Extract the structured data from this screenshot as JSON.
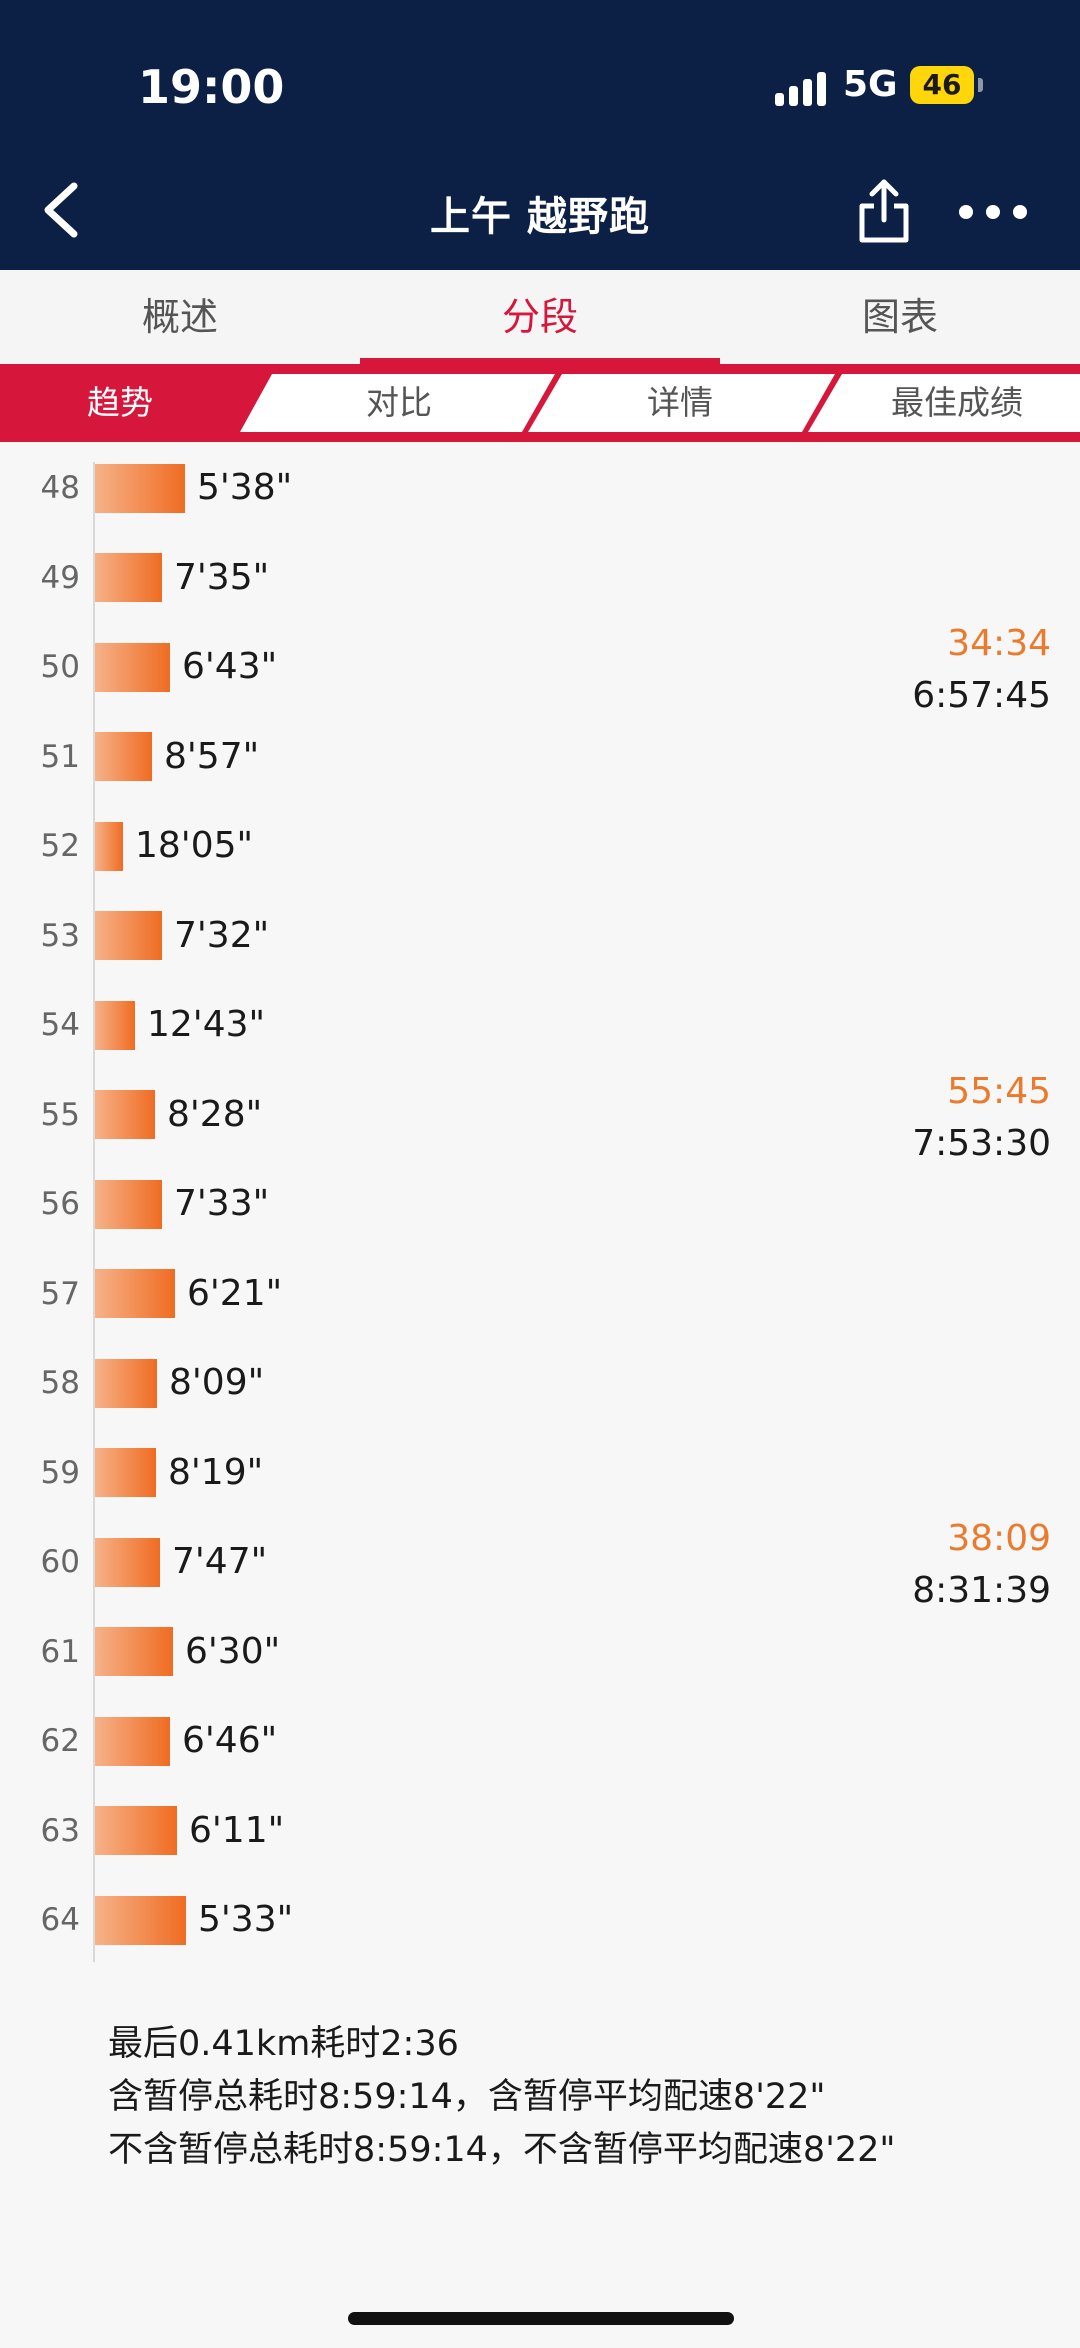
{
  "status_bar": {
    "time": "19:00",
    "network": "5G",
    "battery": "46"
  },
  "nav": {
    "title": "上午 越野跑"
  },
  "tabs": [
    {
      "label": "概述"
    },
    {
      "label": "分段"
    },
    {
      "label": "图表"
    }
  ],
  "active_tab": "分段",
  "subtabs": [
    {
      "label": "趋势"
    },
    {
      "label": "对比"
    },
    {
      "label": "详情"
    },
    {
      "label": "最佳成绩"
    }
  ],
  "active_subtab": "趋势",
  "colors": {
    "header": "#0c1f45",
    "accent": "#d6163a",
    "bar_start": "#f6b289",
    "bar_end": "#ef6c22",
    "marker": "#ec7a2c"
  },
  "chart_data": {
    "type": "bar",
    "orientation": "horizontal",
    "categories": [
      "48",
      "49",
      "50",
      "51",
      "52",
      "53",
      "54",
      "55",
      "56",
      "57",
      "58",
      "59",
      "60",
      "61",
      "62",
      "63",
      "64"
    ],
    "value_labels": [
      "5'38\"",
      "7'35\"",
      "6'43\"",
      "8'57\"",
      "18'05\"",
      "7'32\"",
      "12'43\"",
      "8'28\"",
      "7'33\"",
      "6'21\"",
      "8'09\"",
      "8'19\"",
      "7'47\"",
      "6'30\"",
      "6'46\"",
      "6'11\"",
      "5'33\""
    ],
    "pace_seconds": [
      338,
      455,
      403,
      537,
      1085,
      452,
      763,
      508,
      453,
      381,
      489,
      499,
      467,
      390,
      406,
      371,
      333
    ],
    "markers": [
      {
        "row": "50",
        "split": "34:34",
        "total": "6:57:45"
      },
      {
        "row": "55",
        "split": "55:45",
        "total": "7:53:30"
      },
      {
        "row": "60",
        "split": "38:09",
        "total": "8:31:39"
      }
    ]
  },
  "summary": {
    "line1": "最后0.41km耗时2:36",
    "line2": "含暂停总耗时8:59:14，含暂停平均配速8'22\"",
    "line3": "不含暂停总耗时8:59:14，不含暂停平均配速8'22\""
  }
}
